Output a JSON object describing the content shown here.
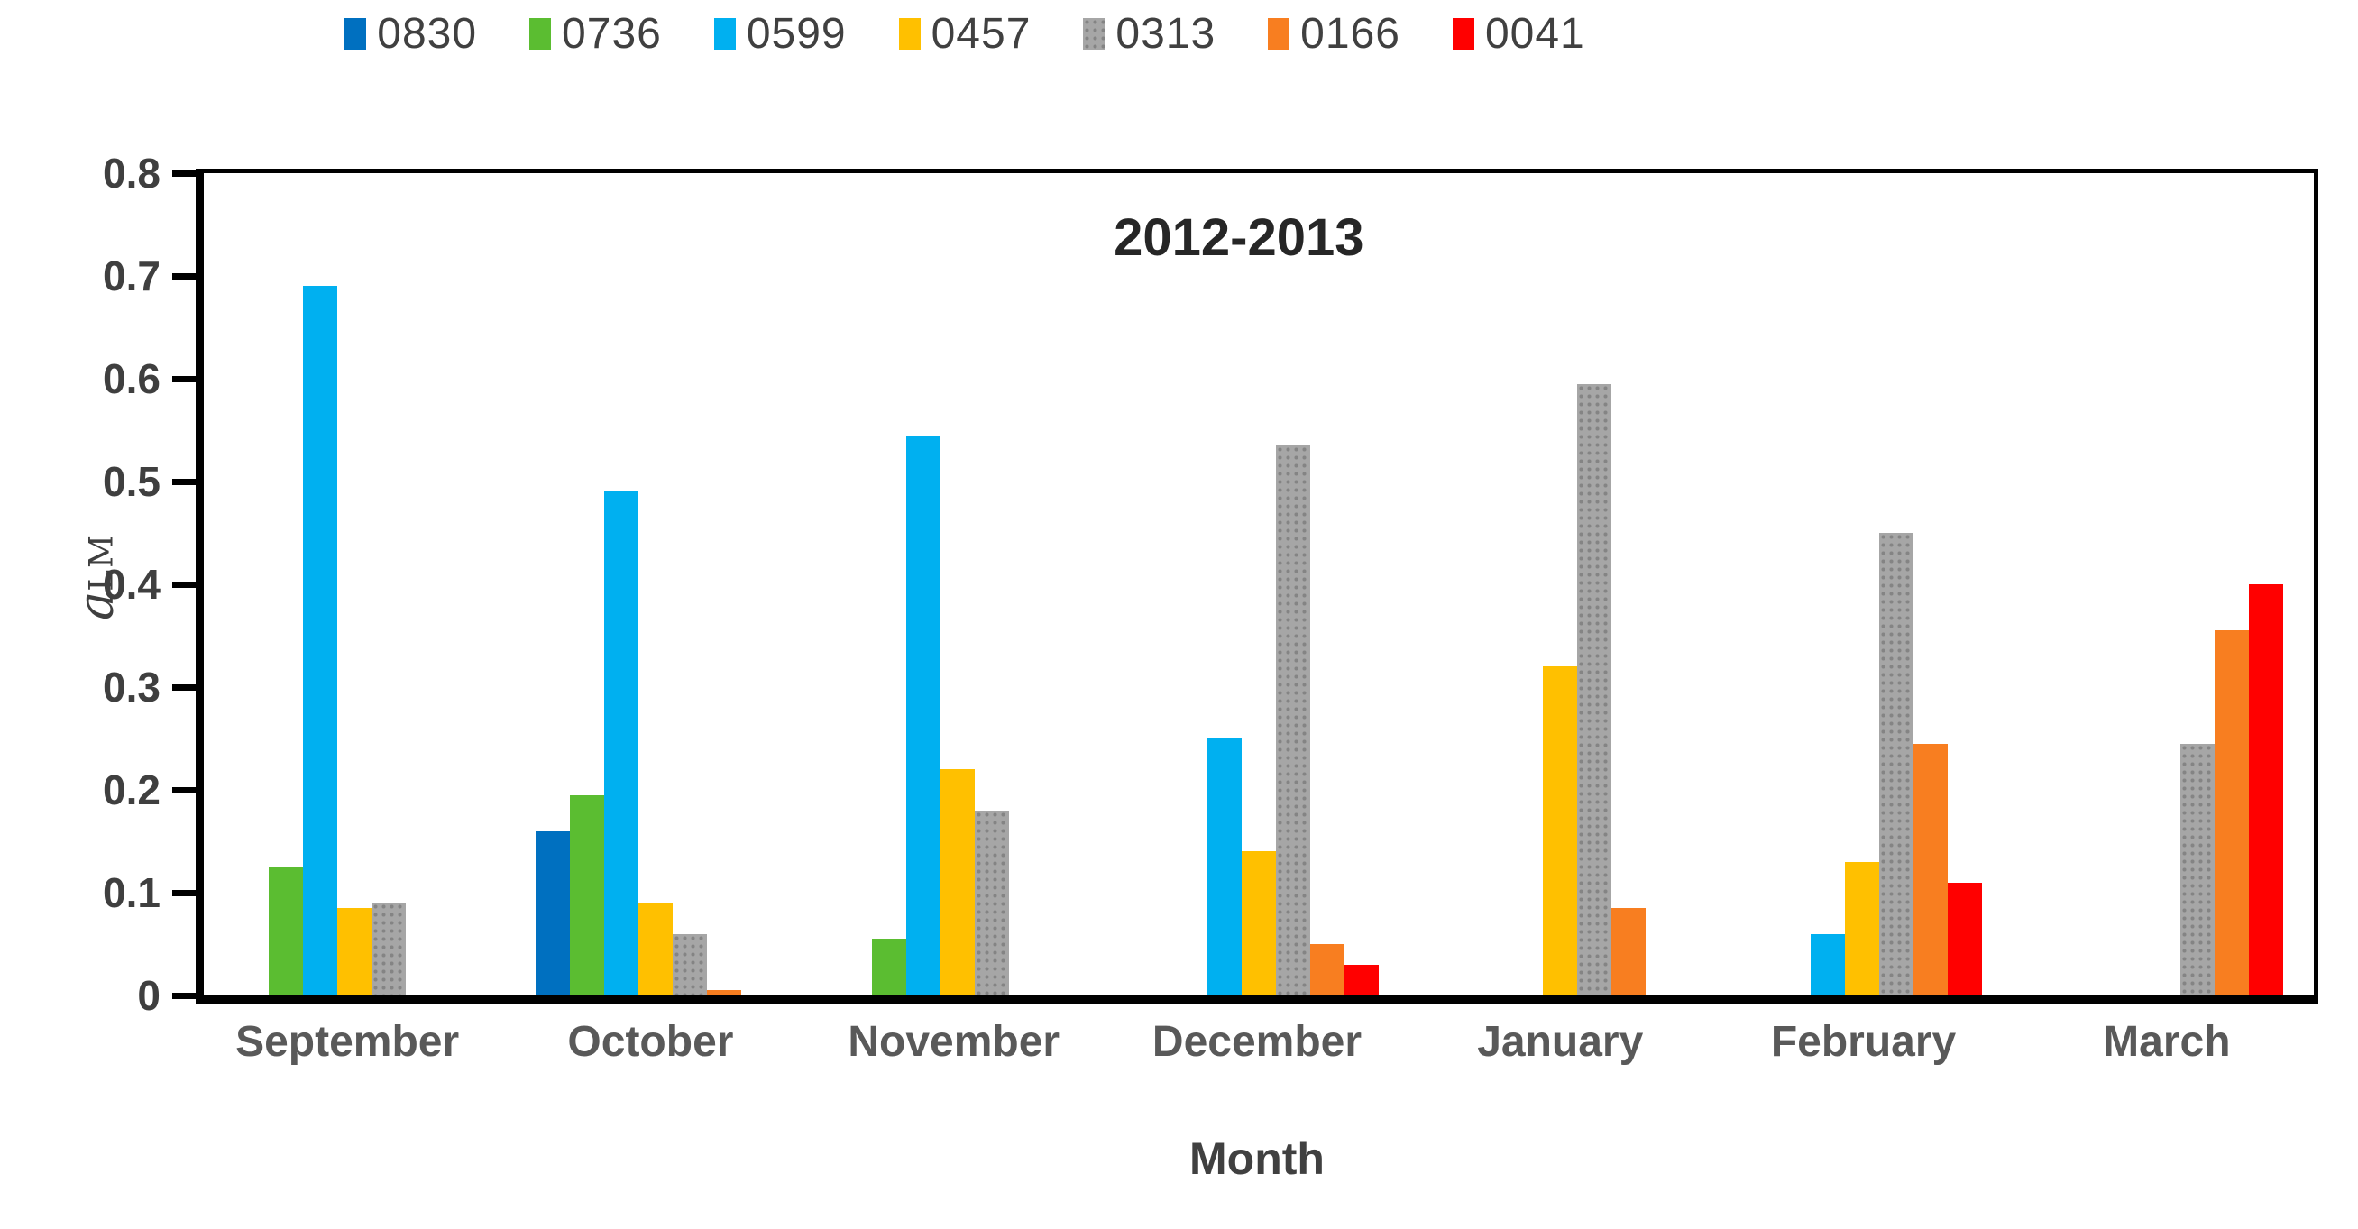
{
  "chart_data": {
    "type": "bar",
    "title": "2012-2013",
    "xlabel": "Month",
    "ylabel_main": "a",
    "ylabel_sub": "LM",
    "ylim": [
      0,
      0.8
    ],
    "yticks": [
      {
        "value": 0.0,
        "label": "0"
      },
      {
        "value": 0.1,
        "label": "0.1"
      },
      {
        "value": 0.2,
        "label": "0.2"
      },
      {
        "value": 0.3,
        "label": "0.3"
      },
      {
        "value": 0.4,
        "label": "0.4"
      },
      {
        "value": 0.5,
        "label": "0.5"
      },
      {
        "value": 0.6,
        "label": "0.6"
      },
      {
        "value": 0.7,
        "label": "0.7"
      },
      {
        "value": 0.8,
        "label": "0.8"
      }
    ],
    "grid": false,
    "legend_position": "top",
    "categories": [
      "September",
      "October",
      "November",
      "December",
      "January",
      "February",
      "March"
    ],
    "series": [
      {
        "name": "0830",
        "color": "#0070C0",
        "values": [
          0,
          0.16,
          0,
          0,
          0,
          0,
          0
        ]
      },
      {
        "name": "0736",
        "color": "#5BBD31",
        "values": [
          0.125,
          0.195,
          0.055,
          0,
          0,
          0,
          0
        ]
      },
      {
        "name": "0599",
        "color": "#00B0F0",
        "values": [
          0.69,
          0.49,
          0.545,
          0.25,
          0,
          0.06,
          0
        ]
      },
      {
        "name": "0457",
        "color": "#FFC000",
        "values": [
          0.085,
          0.09,
          0.22,
          0.14,
          0.32,
          0.13,
          0
        ]
      },
      {
        "name": "0313",
        "color": "#A6A6A6",
        "values": [
          0.09,
          0.06,
          0.18,
          0.535,
          0.595,
          0.45,
          0.245
        ]
      },
      {
        "name": "0166",
        "color": "#F87E20",
        "values": [
          0,
          0.005,
          0,
          0.05,
          0.085,
          0.245,
          0.355
        ]
      },
      {
        "name": "0041",
        "color": "#FF0000",
        "values": [
          0,
          0,
          0,
          0.03,
          0,
          0.11,
          0.4
        ]
      }
    ]
  },
  "ui": {
    "axis_color": "#000000",
    "tick_label_color": "#3f3f3f",
    "category_label_color": "#595959",
    "legend_text_color": "#404040",
    "title_color": "#262626",
    "background": "#ffffff"
  }
}
